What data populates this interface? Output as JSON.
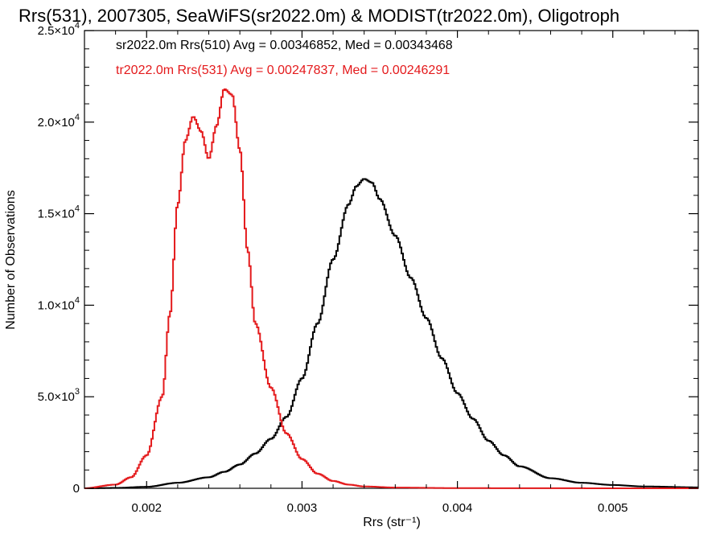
{
  "chart_data": {
    "type": "line",
    "title": "Rrs(531), 2007305, SeaWiFS(sr2022.0m) & MODIST(tr2022.0m), Oligotroph",
    "xlabel": "Rrs (str⁻¹)",
    "ylabel": "Number of Observations",
    "xlim": [
      0.0016,
      0.00555
    ],
    "ylim": [
      0,
      25000
    ],
    "x_ticks": [
      {
        "value": 0.002,
        "label": "0.002"
      },
      {
        "value": 0.003,
        "label": "0.003"
      },
      {
        "value": 0.004,
        "label": "0.004"
      },
      {
        "value": 0.005,
        "label": "0.005"
      }
    ],
    "y_ticks": [
      {
        "value": 0,
        "mantissa": "0",
        "exponent": ""
      },
      {
        "value": 5000,
        "mantissa": "5.0×10",
        "exponent": "3"
      },
      {
        "value": 10000,
        "mantissa": "1.0×10",
        "exponent": "4"
      },
      {
        "value": 15000,
        "mantissa": "1.5×10",
        "exponent": "4"
      },
      {
        "value": 20000,
        "mantissa": "2.0×10",
        "exponent": "4"
      },
      {
        "value": 25000,
        "mantissa": "2.5×10",
        "exponent": "4"
      }
    ],
    "grid": false,
    "legend_position": "top-left",
    "series": [
      {
        "name": "sr2022.0m Rrs(510) Avg = 0.00346852, Med = 0.00343468",
        "color": "#000000",
        "x": [
          0.0016,
          0.0018,
          0.002,
          0.0022,
          0.0024,
          0.0025,
          0.0026,
          0.0027,
          0.0028,
          0.0029,
          0.003,
          0.0031,
          0.0032,
          0.0033,
          0.00335,
          0.0034,
          0.00345,
          0.0035,
          0.0036,
          0.0037,
          0.0038,
          0.0039,
          0.004,
          0.0041,
          0.0042,
          0.0043,
          0.0044,
          0.0046,
          0.0048,
          0.005,
          0.0052,
          0.00555
        ],
        "y": [
          0,
          20,
          80,
          300,
          600,
          900,
          1300,
          1900,
          2700,
          3900,
          6000,
          9000,
          12500,
          15500,
          16500,
          16900,
          16700,
          15800,
          13800,
          11500,
          9300,
          7100,
          5200,
          3800,
          2600,
          1800,
          1200,
          550,
          300,
          180,
          100,
          50
        ]
      },
      {
        "name": "tr2022.0m Rrs(531) Avg = 0.00247837, Med = 0.00246291",
        "color": "#e41a1c",
        "x": [
          0.0016,
          0.0018,
          0.0019,
          0.002,
          0.0021,
          0.00215,
          0.0022,
          0.00225,
          0.0023,
          0.00235,
          0.0024,
          0.00245,
          0.0025,
          0.00255,
          0.0026,
          0.00265,
          0.0027,
          0.0028,
          0.0029,
          0.003,
          0.0031,
          0.0032,
          0.0033,
          0.0034,
          0.0036,
          0.004,
          0.0045,
          0.005,
          0.00555
        ],
        "y": [
          0,
          200,
          600,
          1800,
          5000,
          9500,
          15500,
          19000,
          20300,
          19500,
          18000,
          19800,
          21800,
          21500,
          18500,
          13000,
          9000,
          5500,
          3000,
          1600,
          800,
          400,
          200,
          100,
          40,
          10,
          5,
          2,
          0
        ]
      }
    ]
  }
}
